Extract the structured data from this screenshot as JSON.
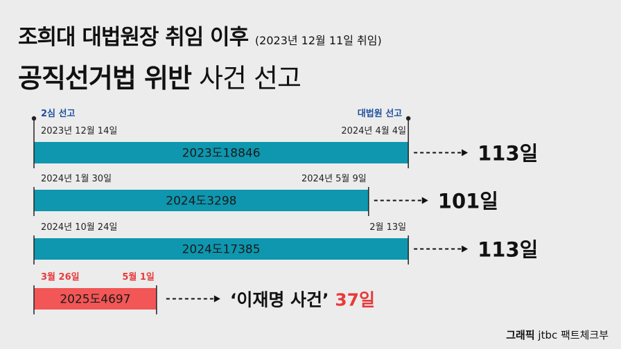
{
  "header": {
    "title_line1": "조희대 대법원장 취임 이후",
    "title_note": "(2023년 12월 11일 취임)",
    "title_line2_bold": "공직선거법 위반",
    "title_line2_rest": "사건 선고"
  },
  "footer": {
    "credit_bold": "그래픽",
    "credit_rest": "jtbc 팩트체크부"
  },
  "colors": {
    "bar": "#0e97af",
    "highlight_bar": "#f25656",
    "highlight_text": "#e83a3a",
    "marker_label": "#1c4f9c",
    "axis": "#222222"
  },
  "chart_data": {
    "type": "bar",
    "orientation": "horizontal-timeline",
    "marker_labels": {
      "start": "2심 선고",
      "end": "대법원 선고"
    },
    "rows": [
      {
        "case": "2023도18846",
        "start_label": "2023년 12월 14일",
        "end_label": "2024년 4월 4일",
        "days": 113,
        "days_label": "113일",
        "highlight": false
      },
      {
        "case": "2024도3298",
        "start_label": "2024년 1월 30일",
        "end_label": "2024년 5월 9일",
        "days": 101,
        "days_label": "101일",
        "highlight": false
      },
      {
        "case": "2024도17385",
        "start_label": "2024년 10월 24일",
        "end_label": "2월 13일",
        "days": 113,
        "days_label": "113일",
        "highlight": false
      },
      {
        "case": "2025도4697",
        "start_label": "3월 26일",
        "end_label": "5월 1일",
        "days": 37,
        "days_prefix": "‘이재명 사건’",
        "days_label": "37일",
        "highlight": true
      }
    ]
  }
}
